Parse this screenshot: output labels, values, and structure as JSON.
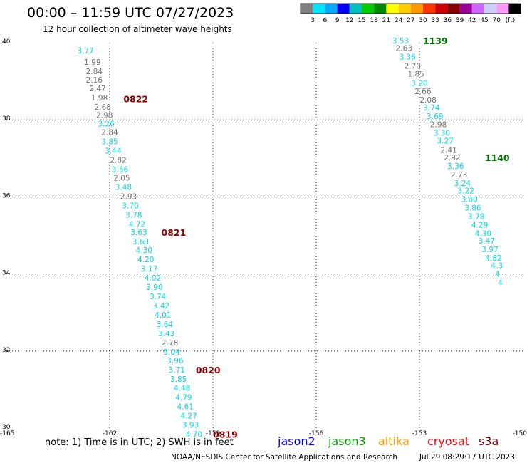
{
  "header": {
    "title": "00:00 – 11:59 UTC 07/27/2023",
    "subtitle": "12 hour collection of altimeter wave heights"
  },
  "colorbar": {
    "colors": [
      "#808080",
      "#00e5ff",
      "#00aaff",
      "#0000ff",
      "#00c0c0",
      "#00cc00",
      "#008800",
      "#ffff00",
      "#ffcc00",
      "#ff9900",
      "#ff3300",
      "#cc0000",
      "#880000",
      "#990099",
      "#cc66ff",
      "#ccccff",
      "#ff99ff",
      "#000000"
    ],
    "ticks": [
      "3",
      "6",
      "9",
      "12",
      "15",
      "18",
      "21",
      "24",
      "27",
      "30",
      "33",
      "36",
      "39",
      "42",
      "45",
      "70"
    ],
    "unit": "(ft)"
  },
  "chart_data": {
    "type": "scatter",
    "title": "00:00 – 11:59 UTC 07/27/2023",
    "subtitle": "12 hour collection of altimeter wave heights",
    "xlim": [
      -165,
      -150
    ],
    "ylim": [
      30,
      40
    ],
    "x_ticks": [
      "-165",
      "-162",
      "-159",
      "-156",
      "-153",
      "-150"
    ],
    "y_ticks": [
      "40",
      "38",
      "36",
      "34",
      "32",
      "30"
    ],
    "grid": true,
    "colors": {
      "cyan": "#00d8e8",
      "gray": "#707070",
      "time": "#880000",
      "time_green": "#007700"
    },
    "series": [
      {
        "name": "jason2",
        "points": [
          {
            "x": -162.7,
            "y": 39.8,
            "v": "3.77",
            "c": "cyan"
          },
          {
            "x": -162.5,
            "y": 39.5,
            "v": "1.99",
            "c": "gray"
          },
          {
            "x": -162.45,
            "y": 39.26,
            "v": "2.84",
            "c": "gray"
          },
          {
            "x": -162.45,
            "y": 39.04,
            "v": "2.16",
            "c": "gray"
          },
          {
            "x": -162.35,
            "y": 38.82,
            "v": "2.47",
            "c": "gray"
          },
          {
            "x": -162.3,
            "y": 38.58,
            "v": "1.98",
            "c": "gray"
          },
          {
            "x": -162.2,
            "y": 38.34,
            "v": "2.68",
            "c": "gray"
          },
          {
            "x": -162.15,
            "y": 38.12,
            "v": "2.98",
            "c": "gray"
          },
          {
            "x": -162.1,
            "y": 37.9,
            "v": "3.26",
            "c": "cyan"
          },
          {
            "x": -162.0,
            "y": 37.68,
            "v": "2.84",
            "c": "gray"
          },
          {
            "x": -162.0,
            "y": 37.44,
            "v": "3.85",
            "c": "cyan"
          },
          {
            "x": -161.9,
            "y": 37.2,
            "v": "3.44",
            "c": "cyan"
          },
          {
            "x": -161.75,
            "y": 36.96,
            "v": "2.82",
            "c": "gray"
          },
          {
            "x": -161.7,
            "y": 36.72,
            "v": "3.56",
            "c": "cyan"
          },
          {
            "x": -161.65,
            "y": 36.5,
            "v": "2.05",
            "c": "gray"
          },
          {
            "x": -161.6,
            "y": 36.26,
            "v": "3.48",
            "c": "cyan"
          },
          {
            "x": -161.45,
            "y": 36.02,
            "v": "2.93",
            "c": "gray"
          },
          {
            "x": -161.4,
            "y": 35.78,
            "v": "3.70",
            "c": "cyan"
          },
          {
            "x": -161.3,
            "y": 35.54,
            "v": "3.78",
            "c": "cyan"
          },
          {
            "x": -161.2,
            "y": 35.3,
            "v": "4.72",
            "c": "cyan"
          },
          {
            "x": -161.15,
            "y": 35.08,
            "v": "3.63",
            "c": "cyan"
          },
          {
            "x": -161.1,
            "y": 34.84,
            "v": "3.63",
            "c": "cyan"
          },
          {
            "x": -161.0,
            "y": 34.62,
            "v": "4.30",
            "c": "cyan"
          },
          {
            "x": -160.95,
            "y": 34.38,
            "v": "4.20",
            "c": "cyan"
          },
          {
            "x": -160.85,
            "y": 34.14,
            "v": "3.17",
            "c": "cyan"
          },
          {
            "x": -160.75,
            "y": 33.9,
            "v": "4.02",
            "c": "cyan"
          },
          {
            "x": -160.7,
            "y": 33.66,
            "v": "3.90",
            "c": "cyan"
          },
          {
            "x": -160.6,
            "y": 33.42,
            "v": "3.74",
            "c": "cyan"
          },
          {
            "x": -160.5,
            "y": 33.18,
            "v": "3.42",
            "c": "cyan"
          },
          {
            "x": -160.45,
            "y": 32.94,
            "v": "4.01",
            "c": "cyan"
          },
          {
            "x": -160.4,
            "y": 32.7,
            "v": "3.64",
            "c": "cyan"
          },
          {
            "x": -160.35,
            "y": 32.46,
            "v": "3.43",
            "c": "cyan"
          },
          {
            "x": -160.25,
            "y": 32.22,
            "v": "2.78",
            "c": "gray"
          },
          {
            "x": -160.2,
            "y": 31.98,
            "v": "5.04",
            "c": "cyan"
          },
          {
            "x": -160.1,
            "y": 31.76,
            "v": "3.96",
            "c": "cyan"
          },
          {
            "x": -160.05,
            "y": 31.52,
            "v": "3.71",
            "c": "cyan"
          },
          {
            "x": -160.0,
            "y": 31.28,
            "v": "3.85",
            "c": "cyan"
          },
          {
            "x": -159.9,
            "y": 31.04,
            "v": "4.48",
            "c": "cyan"
          },
          {
            "x": -159.85,
            "y": 30.8,
            "v": "4.79",
            "c": "cyan"
          },
          {
            "x": -159.8,
            "y": 30.56,
            "v": "4.61",
            "c": "cyan"
          },
          {
            "x": -159.7,
            "y": 30.32,
            "v": "4.27",
            "c": "cyan"
          },
          {
            "x": -159.65,
            "y": 30.08,
            "v": "3.93",
            "c": "cyan"
          },
          {
            "x": -159.55,
            "y": 29.84,
            "v": "4.70",
            "c": "cyan"
          }
        ]
      },
      {
        "name": "jason3",
        "points": [
          {
            "x": -153.55,
            "y": 40.06,
            "v": "3.53",
            "c": "cyan"
          },
          {
            "x": -153.45,
            "y": 39.86,
            "v": "2.63",
            "c": "gray"
          },
          {
            "x": -153.35,
            "y": 39.64,
            "v": "3.36",
            "c": "cyan"
          },
          {
            "x": -153.2,
            "y": 39.4,
            "v": "2.70",
            "c": "gray"
          },
          {
            "x": -153.1,
            "y": 39.2,
            "v": "1.85",
            "c": "gray"
          },
          {
            "x": -153.0,
            "y": 38.96,
            "v": "3.20",
            "c": "cyan"
          },
          {
            "x": -152.9,
            "y": 38.74,
            "v": "2.66",
            "c": "gray"
          },
          {
            "x": -152.75,
            "y": 38.52,
            "v": "2.08",
            "c": "gray"
          },
          {
            "x": -152.65,
            "y": 38.32,
            "v": "3.74",
            "c": "cyan"
          },
          {
            "x": -152.55,
            "y": 38.1,
            "v": "3.69",
            "c": "cyan"
          },
          {
            "x": -152.45,
            "y": 37.88,
            "v": "2.98",
            "c": "gray"
          },
          {
            "x": -152.35,
            "y": 37.66,
            "v": "3.30",
            "c": "cyan"
          },
          {
            "x": -152.25,
            "y": 37.46,
            "v": "3.27",
            "c": "cyan"
          },
          {
            "x": -152.15,
            "y": 37.22,
            "v": "2.41",
            "c": "gray"
          },
          {
            "x": -152.05,
            "y": 37.02,
            "v": "2.92",
            "c": "gray"
          },
          {
            "x": -151.95,
            "y": 36.8,
            "v": "3.36",
            "c": "cyan"
          },
          {
            "x": -151.85,
            "y": 36.58,
            "v": "2.73",
            "c": "gray"
          },
          {
            "x": -151.75,
            "y": 36.36,
            "v": "3.24",
            "c": "cyan"
          },
          {
            "x": -151.65,
            "y": 36.16,
            "v": "3.22",
            "c": "cyan"
          },
          {
            "x": -151.55,
            "y": 35.94,
            "v": "3.80",
            "c": "cyan"
          },
          {
            "x": -151.45,
            "y": 35.72,
            "v": "3.86",
            "c": "cyan"
          },
          {
            "x": -151.35,
            "y": 35.5,
            "v": "3.78",
            "c": "cyan"
          },
          {
            "x": -151.25,
            "y": 35.28,
            "v": "4.29",
            "c": "cyan"
          },
          {
            "x": -151.15,
            "y": 35.06,
            "v": "4.30",
            "c": "cyan"
          },
          {
            "x": -151.05,
            "y": 34.86,
            "v": "3.47",
            "c": "cyan"
          },
          {
            "x": -150.95,
            "y": 34.64,
            "v": "3.97",
            "c": "cyan"
          },
          {
            "x": -150.85,
            "y": 34.42,
            "v": "4.82",
            "c": "cyan"
          },
          {
            "x": -150.75,
            "y": 34.22,
            "v": "4.3",
            "c": "cyan"
          },
          {
            "x": -150.7,
            "y": 34.0,
            "v": "4.",
            "c": "cyan"
          },
          {
            "x": -150.65,
            "y": 33.78,
            "v": "4",
            "c": "cyan"
          }
        ]
      }
    ],
    "time_labels": [
      {
        "x": -161.6,
        "y": 38.55,
        "v": "0822",
        "c": "time"
      },
      {
        "x": -160.5,
        "y": 35.08,
        "v": "0821",
        "c": "time"
      },
      {
        "x": -159.5,
        "y": 31.52,
        "v": "0820",
        "c": "time"
      },
      {
        "x": -159.0,
        "y": 29.84,
        "v": "0819",
        "c": "time"
      },
      {
        "x": -152.9,
        "y": 40.06,
        "v": "1139",
        "c": "time_green"
      },
      {
        "x": -151.1,
        "y": 37.02,
        "v": "1140",
        "c": "time_green"
      }
    ]
  },
  "footer": {
    "note": "note: 1) Time is in UTC; 2) SWH is in feet",
    "satellites": [
      {
        "name": "jason2",
        "color": "#0000ff"
      },
      {
        "name": "jason3",
        "color": "#009900"
      },
      {
        "name": "altika",
        "color": "#ff9900"
      },
      {
        "name": "cryosat",
        "color": "#ff0000"
      },
      {
        "name": "s3a",
        "color": "#880000"
      }
    ],
    "credit": "NOAA/NESDIS Center for Satellite Applications and Research",
    "timestamp": "Jul 29 08:29:17 UTC 2023"
  }
}
